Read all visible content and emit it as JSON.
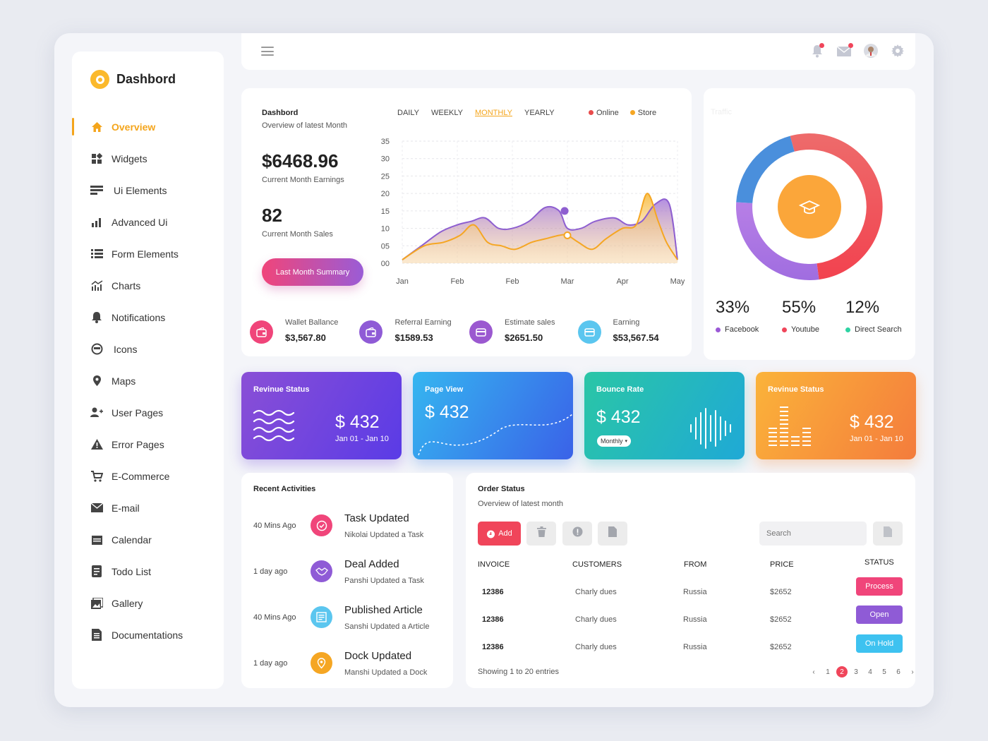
{
  "app": {
    "title": "Dashbord"
  },
  "sidebar": {
    "items": [
      {
        "label": "Overview",
        "icon": "home-icon"
      },
      {
        "label": "Widgets",
        "icon": "widgets-icon"
      },
      {
        "label": "Ui Elements",
        "icon": "ui-elements-icon"
      },
      {
        "label": "Advanced Ui",
        "icon": "bar-chart-icon"
      },
      {
        "label": "Form Elements",
        "icon": "list-icon"
      },
      {
        "label": "Charts",
        "icon": "chart-icon"
      },
      {
        "label": "Notifications",
        "icon": "bell-icon"
      },
      {
        "label": "Icons",
        "icon": "smiley-icon"
      },
      {
        "label": "Maps",
        "icon": "map-pin-icon"
      },
      {
        "label": "User Pages",
        "icon": "user-add-icon"
      },
      {
        "label": "Error Pages",
        "icon": "warning-icon"
      },
      {
        "label": "E-Commerce",
        "icon": "cart-icon"
      },
      {
        "label": "E-mail",
        "icon": "mail-icon"
      },
      {
        "label": "Calendar",
        "icon": "calendar-icon"
      },
      {
        "label": "Todo List",
        "icon": "todo-icon"
      },
      {
        "label": "Gallery",
        "icon": "gallery-icon"
      },
      {
        "label": "Documentations",
        "icon": "document-icon"
      }
    ]
  },
  "overview": {
    "title": "Dashbord",
    "subtitle": "Overview of latest Month",
    "tabs": [
      "DAILY",
      "WEEKLY",
      "MONTHLY",
      "YEARLY"
    ],
    "active_tab": "MONTHLY",
    "legend": [
      {
        "label": "Online",
        "color": "#e84b4b"
      },
      {
        "label": "Store",
        "color": "#f5a623"
      }
    ],
    "earnings": "$6468.96",
    "earnings_label": "Current Month Earnings",
    "sales": "82",
    "sales_label": "Current Month Sales",
    "summary_button": "Last Month Summary",
    "stats": [
      {
        "label": "Wallet Ballance",
        "value": "$3,567.80",
        "color": "#f0457a",
        "icon": "wallet-icon"
      },
      {
        "label": "Referral Earning",
        "value": "$1589.53",
        "color": "#8f5bd6",
        "icon": "wallet-icon"
      },
      {
        "label": "Estimate sales",
        "value": "$2651.50",
        "color": "#9b59d0",
        "icon": "card-icon"
      },
      {
        "label": "Earning",
        "value": "$53,567.54",
        "color": "#5bc6ef",
        "icon": "card-icon"
      }
    ]
  },
  "chart_data": {
    "type": "area",
    "x_tick_labels": [
      "Jan",
      "Feb",
      "Feb",
      "Mar",
      "Apr",
      "May"
    ],
    "y_tick_labels": [
      "00",
      "05",
      "10",
      "15",
      "20",
      "25",
      "30",
      "35"
    ],
    "ylim": [
      0,
      35
    ],
    "xlim": [
      0,
      5
    ],
    "grid": true,
    "legend_position": "top-right",
    "series": [
      {
        "name": "Online",
        "color": "#8e5fd0",
        "x": [
          0,
          0.35,
          0.7,
          1.0,
          1.25,
          1.5,
          1.75,
          2.0,
          2.3,
          2.6,
          2.85,
          3.0,
          3.25,
          3.5,
          3.85,
          4.1,
          4.35,
          4.6,
          4.85,
          5.0
        ],
        "y": [
          1,
          5,
          9,
          11,
          12,
          13,
          10,
          10,
          12,
          16,
          15,
          10,
          10,
          12,
          13,
          11,
          12,
          17,
          17,
          1
        ]
      },
      {
        "name": "Store",
        "color": "#f5a623",
        "x": [
          0,
          0.4,
          0.75,
          1.05,
          1.3,
          1.55,
          1.8,
          2.05,
          2.35,
          2.6,
          2.85,
          3.0,
          3.2,
          3.45,
          3.7,
          4.0,
          4.25,
          4.45,
          4.65,
          4.8,
          5.0
        ],
        "y": [
          1,
          5,
          6,
          8,
          11,
          6,
          5,
          4,
          6,
          7,
          8,
          8,
          6,
          4,
          7,
          10,
          11,
          20,
          12,
          6,
          1
        ]
      }
    ],
    "markers": [
      {
        "series": "Online",
        "x": 2.95,
        "y": 15
      },
      {
        "series": "Store",
        "x": 3.0,
        "y": 8
      }
    ]
  },
  "traffic": {
    "title": "Traffic",
    "center_icon": "graduation-cap-icon",
    "segments": [
      {
        "label": "Facebook",
        "percent": "33%",
        "value": 33,
        "color": "#9b59d6"
      },
      {
        "label": "Youtube",
        "percent": "55%",
        "value": 55,
        "color": "#f0455a"
      },
      {
        "label": "Direct Search",
        "percent": "12%",
        "value": 12,
        "color": "#2ed3a3"
      }
    ]
  },
  "tiles": [
    {
      "title": "Revinue Status",
      "amount": "$ 432",
      "date": "Jan 01 - Jan 10",
      "icon": "waves-icon"
    },
    {
      "title": "Page View",
      "amount": "$ 432",
      "icon": "trend-line-icon"
    },
    {
      "title": "Bounce Rate",
      "amount": "$ 432",
      "badge": "Monthly",
      "icon": "audio-wave-icon"
    },
    {
      "title": "Revinue Status",
      "amount": "$ 432",
      "date": "Jan 01 - Jan 10",
      "icon": "equalizer-icon"
    }
  ],
  "recent": {
    "title": "Recent Activities",
    "items": [
      {
        "time": "40 Mins Ago",
        "title": "Task Updated",
        "desc": "Nikolai Updated a Task",
        "color": "#f0457a",
        "icon": "check-circle-icon"
      },
      {
        "time": "1 day ago",
        "title": "Deal Added",
        "desc": "Panshi Updated a Task",
        "color": "#8f5bd6",
        "icon": "handshake-icon"
      },
      {
        "time": "40 Mins Ago",
        "title": "Published Article",
        "desc": "Sanshi Updated a Article",
        "color": "#5bc6ef",
        "icon": "article-icon"
      },
      {
        "time": "1 day ago",
        "title": "Dock Updated",
        "desc": "Manshi Updated a Dock",
        "color": "#f5a623",
        "icon": "location-icon"
      }
    ]
  },
  "orders": {
    "title": "Order Status",
    "subtitle": "Overview of latest month",
    "add_button": "Add",
    "search_placeholder": "Search",
    "columns": [
      "INVOICE",
      "CUSTOMERS",
      "FROM",
      "PRICE",
      "STATUS"
    ],
    "rows": [
      {
        "invoice": "12386",
        "customer": "Charly dues",
        "from": "Russia",
        "price": "$2652",
        "status": "Process",
        "status_color": "#f0457a"
      },
      {
        "invoice": "12386",
        "customer": "Charly dues",
        "from": "Russia",
        "price": "$2652",
        "status": "Open",
        "status_color": "#8f5bd6"
      },
      {
        "invoice": "12386",
        "customer": "Charly dues",
        "from": "Russia",
        "price": "$2652",
        "status": "On Hold",
        "status_color": "#3ec2f0"
      }
    ],
    "footer": "Showing 1 to 20 entries",
    "pages": [
      "1",
      "2",
      "3",
      "4",
      "5",
      "6"
    ],
    "current_page": "2"
  }
}
